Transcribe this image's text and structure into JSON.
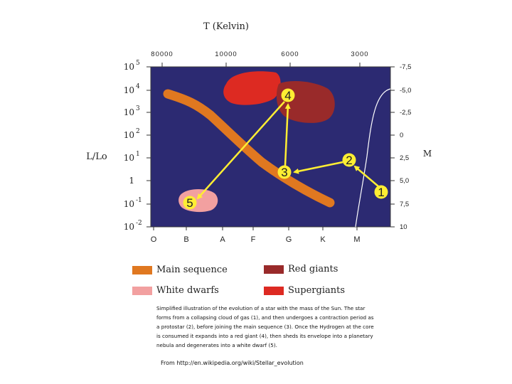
{
  "title": "T (Kelvin)",
  "y_label_left": "L/Lo",
  "y_label_right": "M",
  "temperature_ticks": [
    "80000",
    "10000",
    "6000",
    "3000"
  ],
  "luminosity_ticks": [
    {
      "base": "10",
      "exp": "5"
    },
    {
      "base": "10",
      "exp": "4"
    },
    {
      "base": "10",
      "exp": "3"
    },
    {
      "base": "10",
      "exp": "2"
    },
    {
      "base": "10",
      "exp": "1"
    },
    {
      "base": "1",
      "exp": ""
    },
    {
      "base": "10",
      "exp": "-1"
    },
    {
      "base": "10",
      "exp": "-2"
    }
  ],
  "magnitude_ticks": [
    "-7,5",
    "-5,0",
    "-2,5",
    "0",
    "2,5",
    "5,0",
    "7,5",
    "10"
  ],
  "spectral_classes": [
    "O",
    "B",
    "A",
    "F",
    "G",
    "K",
    "M"
  ],
  "stages": [
    "1",
    "2",
    "3",
    "4",
    "5"
  ],
  "legend": [
    {
      "label": "Main sequence",
      "color": "#e07820"
    },
    {
      "label": "Red giants",
      "color": "#992a2a"
    },
    {
      "label": "White dwarfs",
      "color": "#f2a0a0"
    },
    {
      "label": "Supergiants",
      "color": "#dd2a22"
    }
  ],
  "caption_lines": [
    "Simplified illustration of the evolution of a star with the mass of the Sun. The star",
    "forms from a collapsing cloud of gas (1), and then undergoes a contraction period as",
    "a protostar (2), before joining the main sequence (3).  Once the Hydrogen at the core",
    "is consumed it expands into a red giant (4), then sheds its envelope into a planetary",
    "nebula and degenerates into a white dwarf (5)."
  ],
  "source": "From http://en.wikipedia.org/wiki/Stellar_evolution",
  "colors": {
    "plot_bg": "#2c2a72",
    "main_sequence": "#e07820",
    "red_giants": "#992a2a",
    "supergiants": "#dd2a22",
    "white_dwarfs": "#f2a0a0",
    "arrows": "#ffee33",
    "protostar_track": "#ffffff"
  }
}
